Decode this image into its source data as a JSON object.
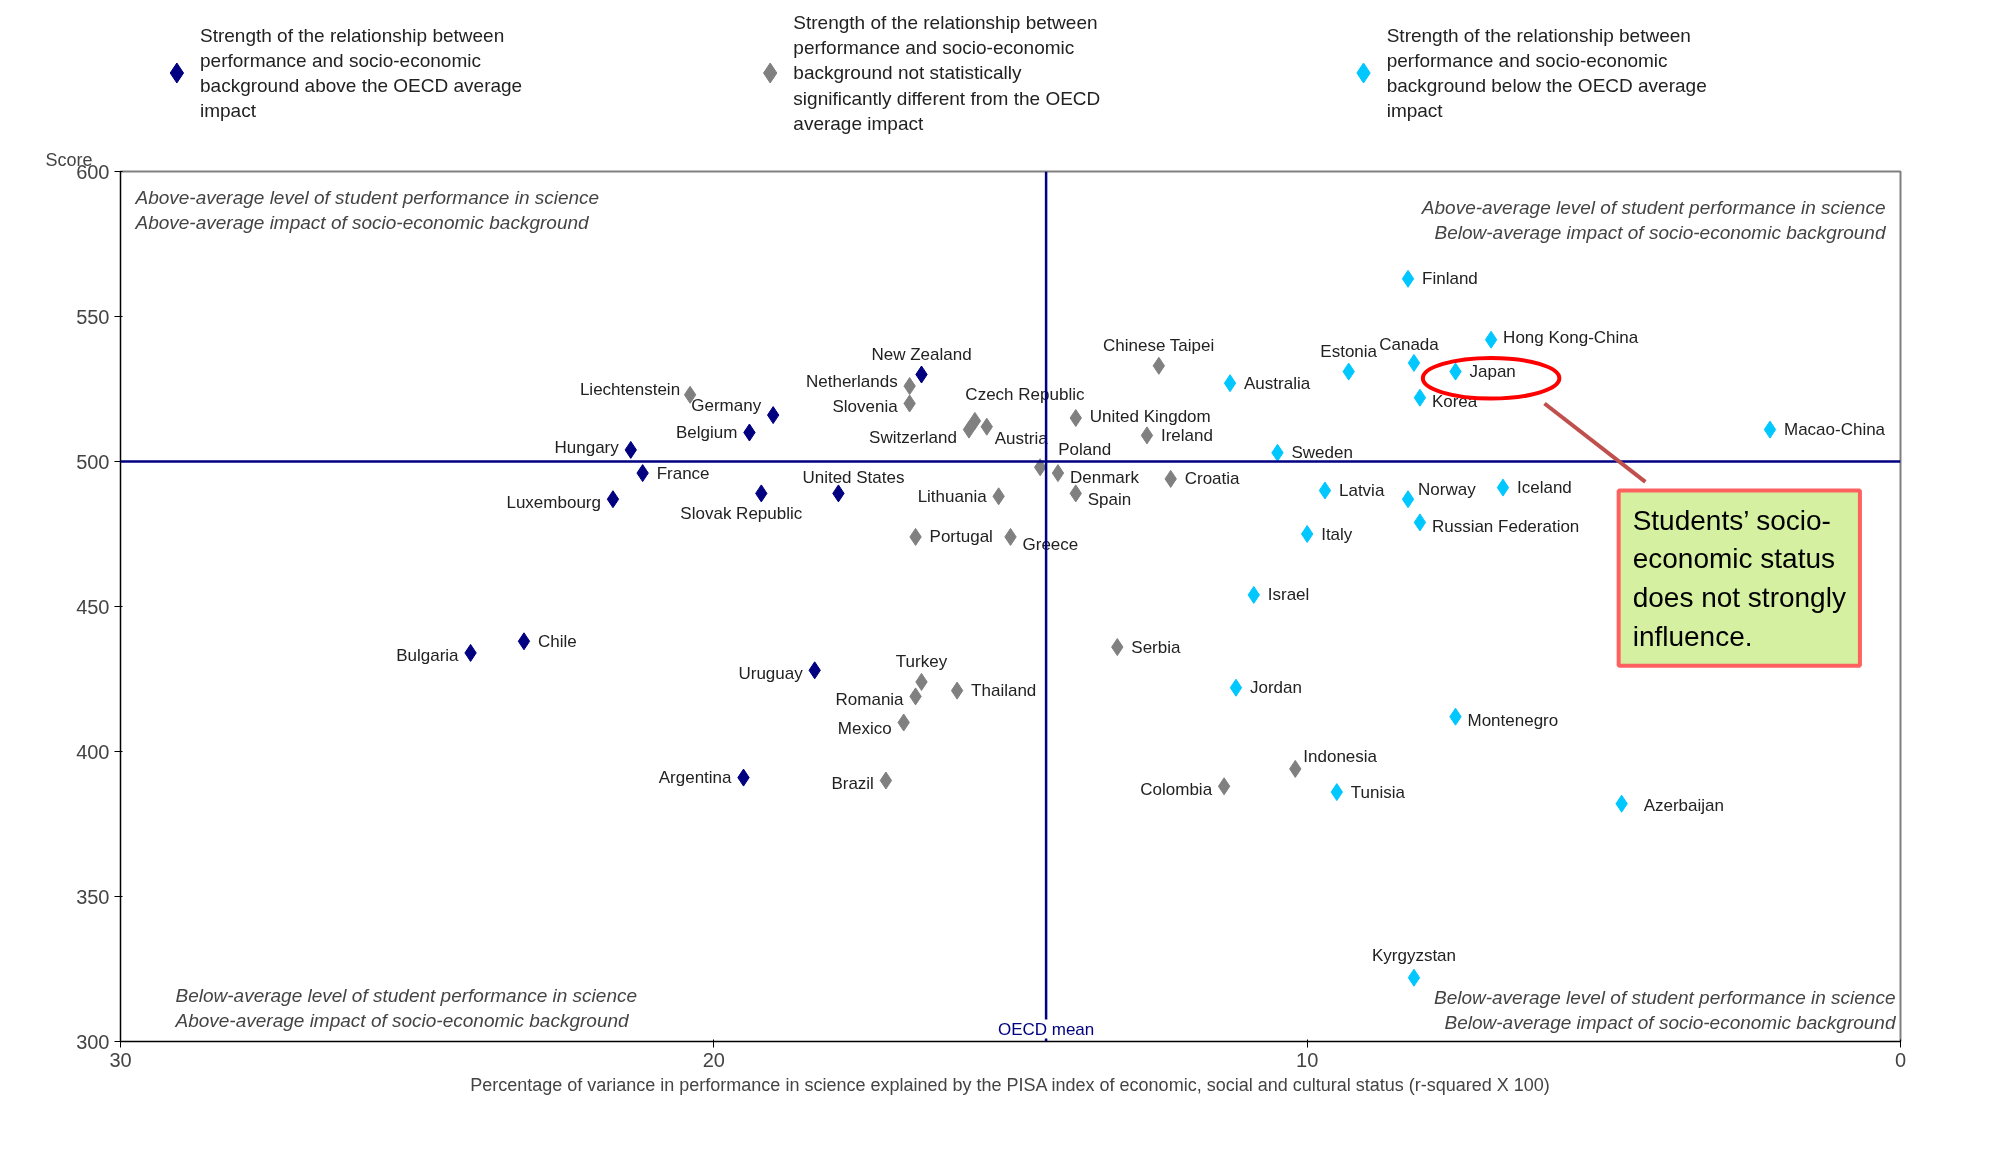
{
  "chart_data": {
    "type": "scatter",
    "xlabel": "Percentage of variance in performance in science explained by the PISA index of economic, social and cultural status (r-squared X 100)",
    "ylabel": "Score",
    "xlim": [
      30,
      0
    ],
    "xticks": [
      30,
      20,
      10,
      0
    ],
    "ylim": [
      300,
      600
    ],
    "yticks": [
      300,
      350,
      400,
      450,
      500,
      550,
      600
    ],
    "grid": false,
    "legend": "top",
    "marker": "diamond",
    "ref_lines": [
      {
        "axis": "x",
        "value": 14.4,
        "label": "OECD mean",
        "color": "#000080"
      },
      {
        "axis": "y",
        "value": 500,
        "label": null,
        "color": "#000080"
      }
    ],
    "series": [
      {
        "name": "Strength of the relationship between\nperformance and socio-economic\nbackground above the OECD average\nimpact",
        "color": "#000080",
        "x": [
          16.5,
          19.0,
          19.4,
          21.4,
          21.2,
          21.7,
          19.2,
          17.9,
          24.1,
          23.2,
          18.3,
          19.5
        ],
        "values": [
          530,
          516,
          510,
          504,
          496,
          487,
          489,
          489,
          434,
          438,
          428,
          391
        ]
      },
      {
        "name": "Strength of the relationship between\nperformance and socio-economic\nbackground not statistically\nsignificantly different from the OECD\naverage impact",
        "color": "#808080",
        "x": [
          20.4,
          16.7,
          16.7,
          15.6,
          15.7,
          15.4,
          14.5,
          14.2,
          13.9,
          15.2,
          16.6,
          15.0,
          13.9,
          12.5,
          12.7,
          12.3,
          13.2,
          16.5,
          16.6,
          15.9,
          16.8,
          17.1,
          11.4,
          10.2
        ],
        "values": [
          523,
          526,
          520,
          514,
          511,
          512,
          498,
          496,
          489,
          488,
          474,
          474,
          515,
          533,
          509,
          494,
          436,
          424,
          419,
          421,
          410,
          390,
          388,
          394
        ]
      },
      {
        "name": "Strength of the relationship between\nperformance and socio-economic\nbackground below the OECD average\nimpact",
        "color": "#00c8ff",
        "x": [
          8.3,
          6.9,
          8.2,
          7.5,
          9.3,
          11.3,
          8.1,
          2.2,
          10.5,
          9.7,
          8.3,
          6.7,
          8.1,
          10.0,
          10.9,
          11.2,
          7.5,
          9.5,
          4.7,
          8.2
        ],
        "values": [
          563,
          542,
          534,
          531,
          531,
          527,
          522,
          511,
          503,
          490,
          487,
          491,
          479,
          475,
          454,
          422,
          412,
          386,
          382,
          322
        ]
      }
    ],
    "annotations": [
      "Above-average level of student performance in science\nAbove-average impact of socio-economic background",
      "Above-average level of student performance in science\nBelow-average impact of socio-economic background",
      "Below-average level of student performance in science\nAbove-average impact of socio-economic background",
      "Below-average level of student performance in science\nBelow-average impact of socio-economic background",
      "Students’ socio-\neconomic status\ndoes not strongly\ninfluence.",
      {
        "text": "New Zealand",
        "x": 16.5,
        "y": 530
      },
      {
        "text": "Germany",
        "x": 19.0,
        "y": 516
      },
      {
        "text": "Belgium",
        "x": 19.4,
        "y": 510
      },
      {
        "text": "Hungary",
        "x": 21.4,
        "y": 504
      },
      {
        "text": "France",
        "x": 21.2,
        "y": 496
      },
      {
        "text": "Luxembourg",
        "x": 21.7,
        "y": 487
      },
      {
        "text": "Slovak Republic",
        "x": 19.2,
        "y": 489
      },
      {
        "text": "United States",
        "x": 17.9,
        "y": 489
      },
      {
        "text": "Bulgaria",
        "x": 24.1,
        "y": 434
      },
      {
        "text": "Chile",
        "x": 23.2,
        "y": 438
      },
      {
        "text": "Uruguay",
        "x": 18.3,
        "y": 428
      },
      {
        "text": "Argentina",
        "x": 19.5,
        "y": 391
      },
      {
        "text": "Liechtenstein",
        "x": 20.4,
        "y": 523
      },
      {
        "text": "Netherlands",
        "x": 16.7,
        "y": 526
      },
      {
        "text": "Slovenia",
        "x": 16.7,
        "y": 520
      },
      {
        "text": "Czech Republic",
        "x": 15.6,
        "y": 514
      },
      {
        "text": "Switzerland",
        "x": 15.7,
        "y": 511
      },
      {
        "text": "Austria",
        "x": 15.4,
        "y": 512
      },
      {
        "text": "Poland",
        "x": 14.5,
        "y": 498
      },
      {
        "text": "Denmark",
        "x": 14.2,
        "y": 496
      },
      {
        "text": "Spain",
        "x": 13.9,
        "y": 489
      },
      {
        "text": "Lithuania",
        "x": 15.2,
        "y": 488
      },
      {
        "text": "Portugal",
        "x": 16.6,
        "y": 474
      },
      {
        "text": "Greece",
        "x": 15.0,
        "y": 474
      },
      {
        "text": "United Kingdom",
        "x": 13.9,
        "y": 515
      },
      {
        "text": "Chinese Taipei",
        "x": 12.5,
        "y": 533
      },
      {
        "text": "Ireland",
        "x": 12.7,
        "y": 509
      },
      {
        "text": "Croatia",
        "x": 12.3,
        "y": 494
      },
      {
        "text": "Serbia",
        "x": 13.2,
        "y": 436
      },
      {
        "text": "Turkey",
        "x": 16.5,
        "y": 424
      },
      {
        "text": "Romania",
        "x": 16.6,
        "y": 419
      },
      {
        "text": "Thailand",
        "x": 15.9,
        "y": 421
      },
      {
        "text": "Mexico",
        "x": 16.8,
        "y": 410
      },
      {
        "text": "Brazil",
        "x": 17.1,
        "y": 390
      },
      {
        "text": "Colombia",
        "x": 11.4,
        "y": 388
      },
      {
        "text": "Indonesia",
        "x": 10.2,
        "y": 394
      },
      {
        "text": "Finland",
        "x": 8.3,
        "y": 563
      },
      {
        "text": "Hong Kong-China",
        "x": 6.9,
        "y": 542
      },
      {
        "text": "Canada",
        "x": 8.2,
        "y": 534
      },
      {
        "text": "Japan",
        "x": 7.5,
        "y": 531
      },
      {
        "text": "Estonia",
        "x": 9.3,
        "y": 531
      },
      {
        "text": "Australia",
        "x": 11.3,
        "y": 527
      },
      {
        "text": "Korea",
        "x": 8.1,
        "y": 522
      },
      {
        "text": "Macao-China",
        "x": 2.2,
        "y": 511
      },
      {
        "text": "Sweden",
        "x": 10.5,
        "y": 503
      },
      {
        "text": "Latvia",
        "x": 9.7,
        "y": 490
      },
      {
        "text": "Norway",
        "x": 8.3,
        "y": 487
      },
      {
        "text": "Iceland",
        "x": 6.7,
        "y": 491
      },
      {
        "text": "Russian Federation",
        "x": 8.1,
        "y": 479
      },
      {
        "text": "Italy",
        "x": 10.0,
        "y": 475
      },
      {
        "text": "Israel",
        "x": 10.9,
        "y": 454
      },
      {
        "text": "Jordan",
        "x": 11.2,
        "y": 422
      },
      {
        "text": "Montenegro",
        "x": 7.5,
        "y": 412
      },
      {
        "text": "Tunisia",
        "x": 9.5,
        "y": 386
      },
      {
        "text": "Azerbaijan",
        "x": 4.7,
        "y": 382
      },
      {
        "text": "Kyrgyzstan",
        "x": 8.2,
        "y": 322
      }
    ]
  }
}
